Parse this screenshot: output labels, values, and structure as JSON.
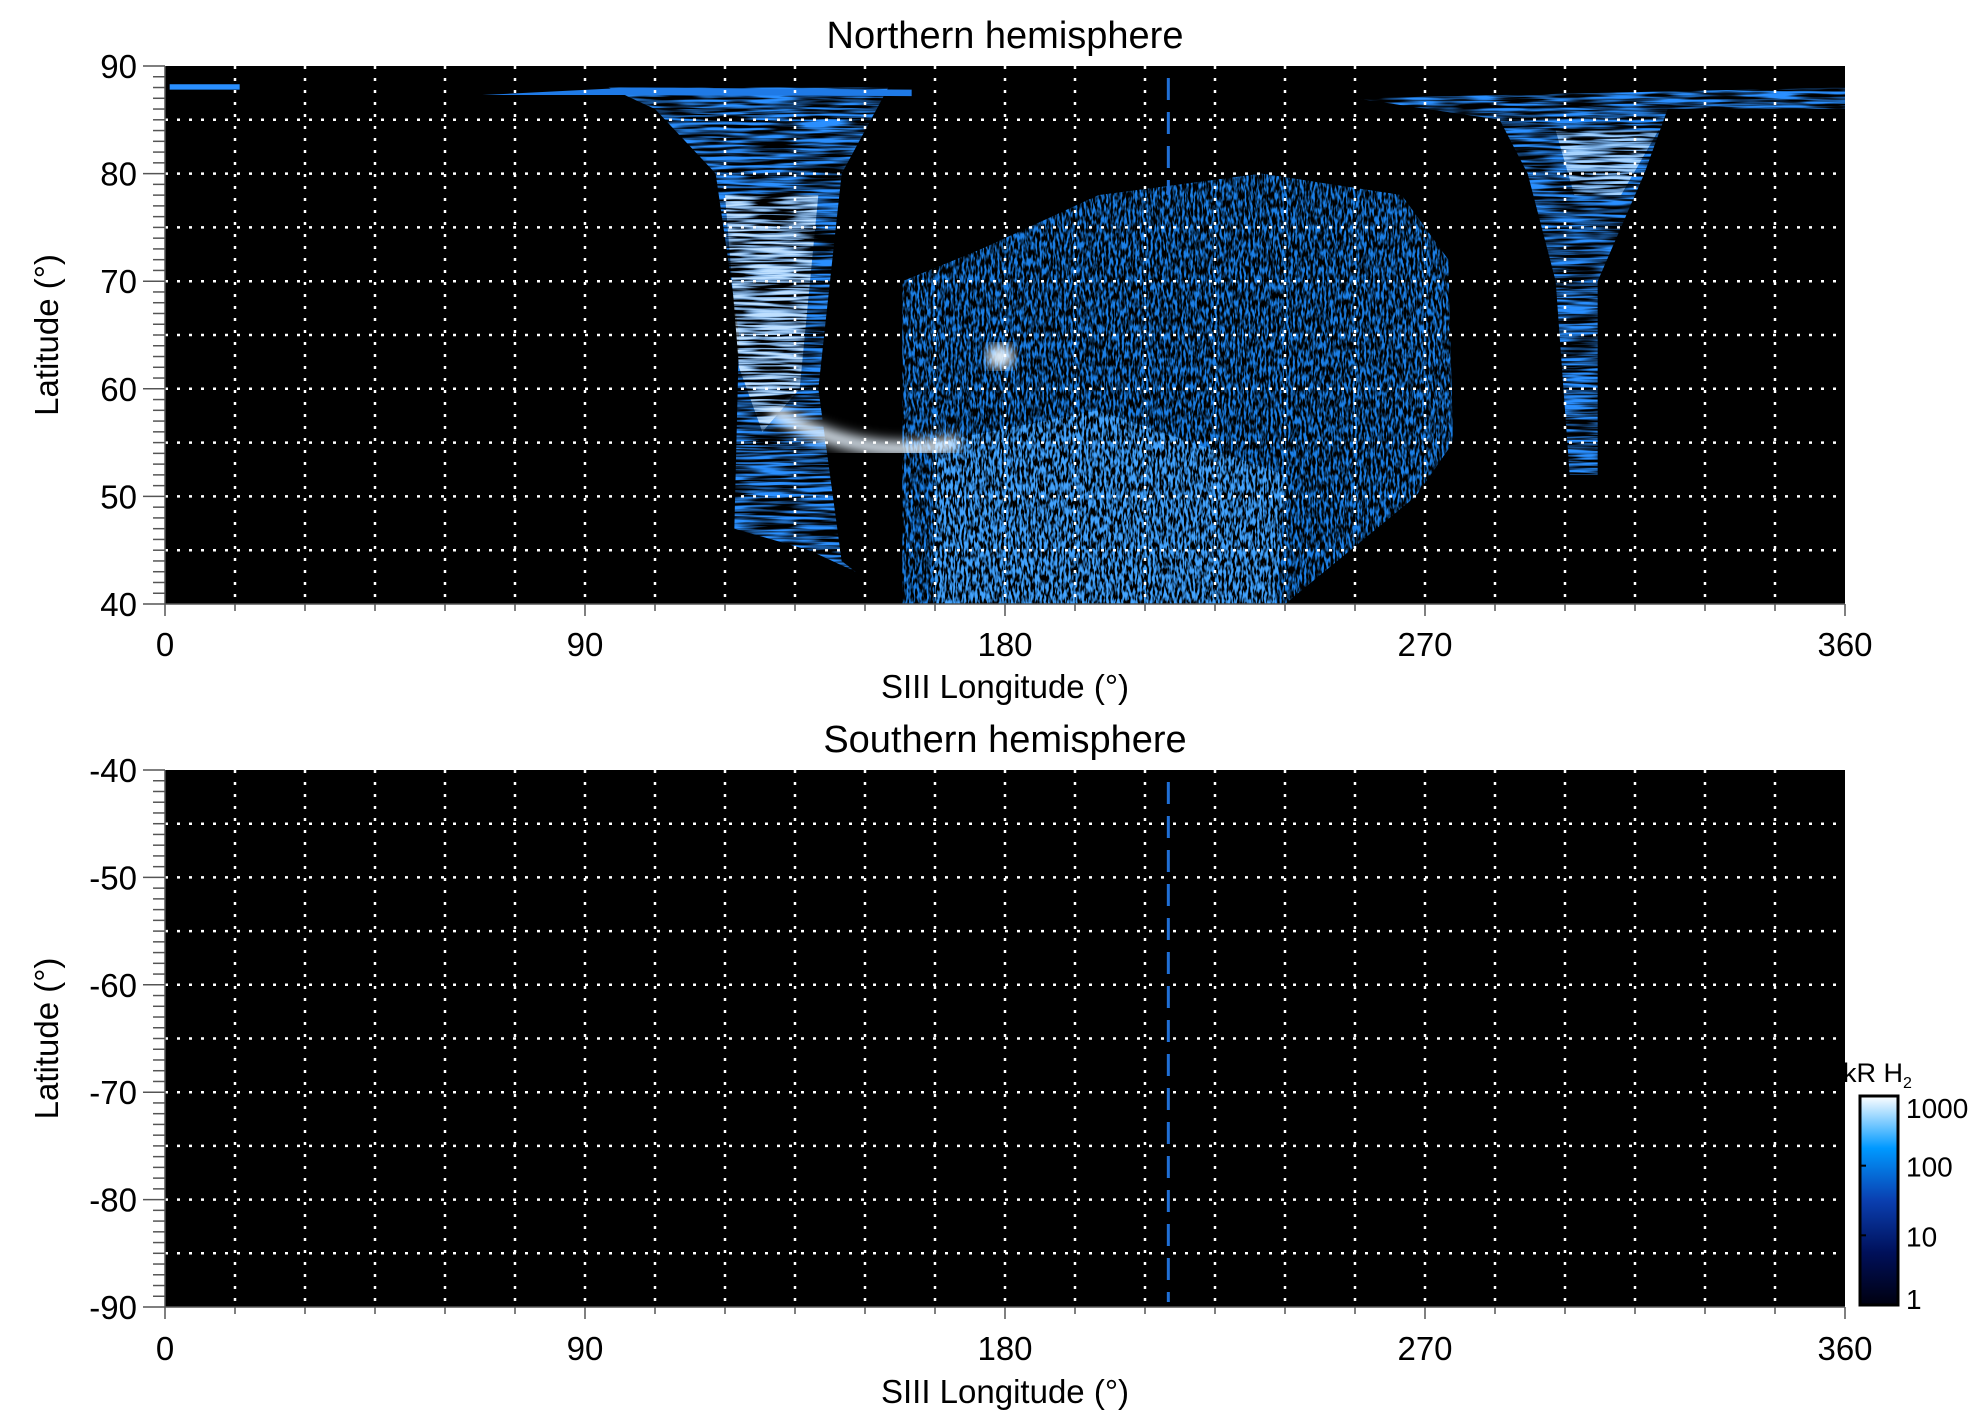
{
  "chart_data": [
    {
      "type": "heatmap",
      "title": "Northern hemisphere",
      "xlabel": "SIII Longitude (°)",
      "ylabel": "Latitude (°)",
      "xlim": [
        0,
        360
      ],
      "ylim": [
        40,
        90
      ],
      "xticks": [
        "0",
        "90",
        "180",
        "270",
        "360"
      ],
      "yticks": [
        "40",
        "50",
        "60",
        "70",
        "80",
        "90"
      ],
      "grid": true,
      "reference_line_longitude": 215,
      "reference_line_color": "#1f6fd6"
    },
    {
      "type": "heatmap",
      "title": "Southern hemisphere",
      "xlabel": "SIII Longitude (°)",
      "ylabel": "Latitude (°)",
      "xlim": [
        0,
        360
      ],
      "ylim": [
        -90,
        -40
      ],
      "xticks": [
        "0",
        "90",
        "180",
        "270",
        "360"
      ],
      "yticks": [
        "-90",
        "-80",
        "-70",
        "-60",
        "-50",
        "-40"
      ],
      "grid": true,
      "reference_line_longitude": 215,
      "reference_line_color": "#1f6fd6"
    }
  ],
  "colorbar": {
    "label": "kR H",
    "label_subscript": "2",
    "scale": "log",
    "range": [
      1,
      1000
    ],
    "ticks": [
      "1",
      "10",
      "100",
      "1000"
    ],
    "colors": [
      "#000010",
      "#00105a",
      "#0a3fb0",
      "#0099ff",
      "#ffffff"
    ]
  }
}
